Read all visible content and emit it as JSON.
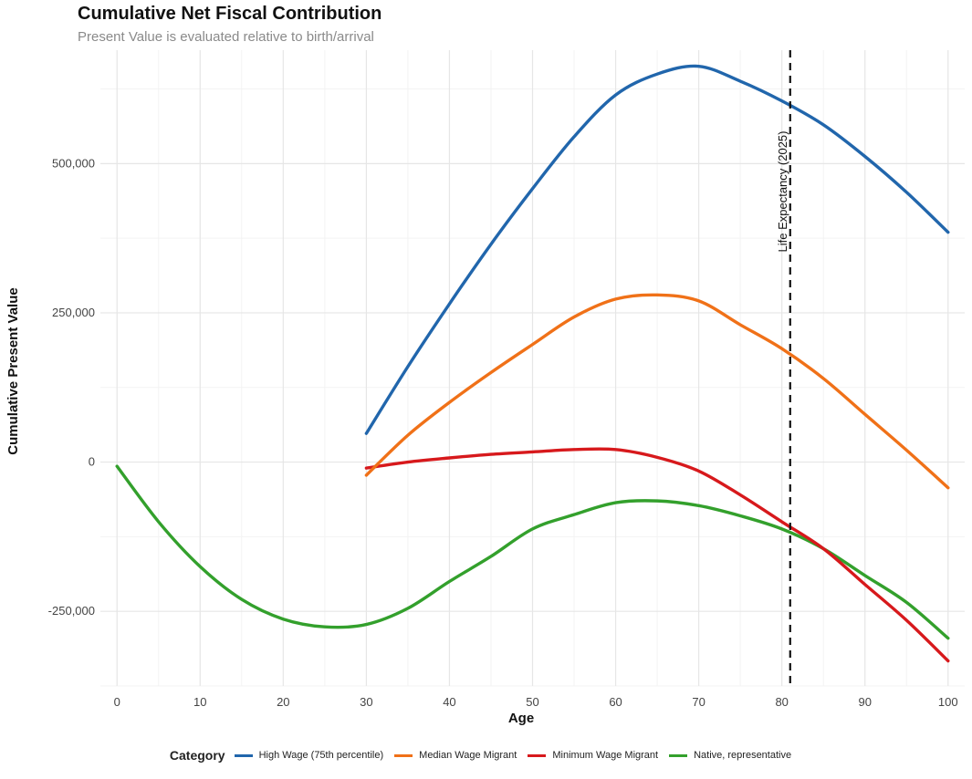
{
  "chart_data": {
    "type": "line",
    "title": "Cumulative Net Fiscal Contribution",
    "subtitle": "Present Value is evaluated relative to birth/arrival",
    "xlabel": "Age",
    "ylabel": "Cumulative Present Value",
    "xlim": [
      -2,
      102
    ],
    "ylim": [
      -375000,
      690000
    ],
    "x_ticks": [
      0,
      10,
      20,
      30,
      40,
      50,
      60,
      70,
      80,
      90,
      100
    ],
    "y_ticks": [
      -250000,
      0,
      250000,
      500000
    ],
    "y_tick_labels": [
      "-250,000",
      "0",
      "250,000",
      "500,000"
    ],
    "legend_title": "Category",
    "vline": {
      "x": 81,
      "label": "Life Expectancy (2025)"
    },
    "series": [
      {
        "name": "High Wage (75th percentile)",
        "color": "#2166ac",
        "x": [
          30,
          35,
          40,
          45,
          50,
          55,
          60,
          65,
          70,
          75,
          80,
          85,
          90,
          95,
          100
        ],
        "y": [
          48000,
          160000,
          265000,
          365000,
          458000,
          545000,
          615000,
          650000,
          663000,
          638000,
          605000,
          565000,
          512000,
          452000,
          385000
        ]
      },
      {
        "name": "Median Wage Migrant",
        "color": "#f07118",
        "x": [
          30,
          35,
          40,
          45,
          50,
          55,
          60,
          65,
          70,
          75,
          80,
          85,
          90,
          95,
          100
        ],
        "y": [
          -22000,
          45000,
          100000,
          150000,
          197000,
          243000,
          273000,
          280000,
          270000,
          230000,
          190000,
          140000,
          80000,
          20000,
          -43000
        ]
      },
      {
        "name": "Minimum Wage Migrant",
        "color": "#d7191c",
        "x": [
          30,
          35,
          40,
          45,
          50,
          55,
          60,
          65,
          70,
          75,
          80,
          85,
          90,
          95,
          100
        ],
        "y": [
          -10000,
          0,
          7000,
          13000,
          17000,
          21000,
          21000,
          8000,
          -15000,
          -55000,
          -100000,
          -145000,
          -205000,
          -265000,
          -333000
        ]
      },
      {
        "name": "Native, representative",
        "color": "#33a02c",
        "x": [
          0,
          5,
          10,
          15,
          20,
          25,
          30,
          35,
          40,
          45,
          50,
          55,
          60,
          65,
          70,
          75,
          80,
          85,
          90,
          95,
          100
        ],
        "y": [
          -7000,
          -100000,
          -175000,
          -230000,
          -263000,
          -276000,
          -272000,
          -245000,
          -200000,
          -158000,
          -112000,
          -88000,
          -68000,
          -65000,
          -73000,
          -90000,
          -112000,
          -145000,
          -190000,
          -235000,
          -295000
        ]
      }
    ]
  }
}
